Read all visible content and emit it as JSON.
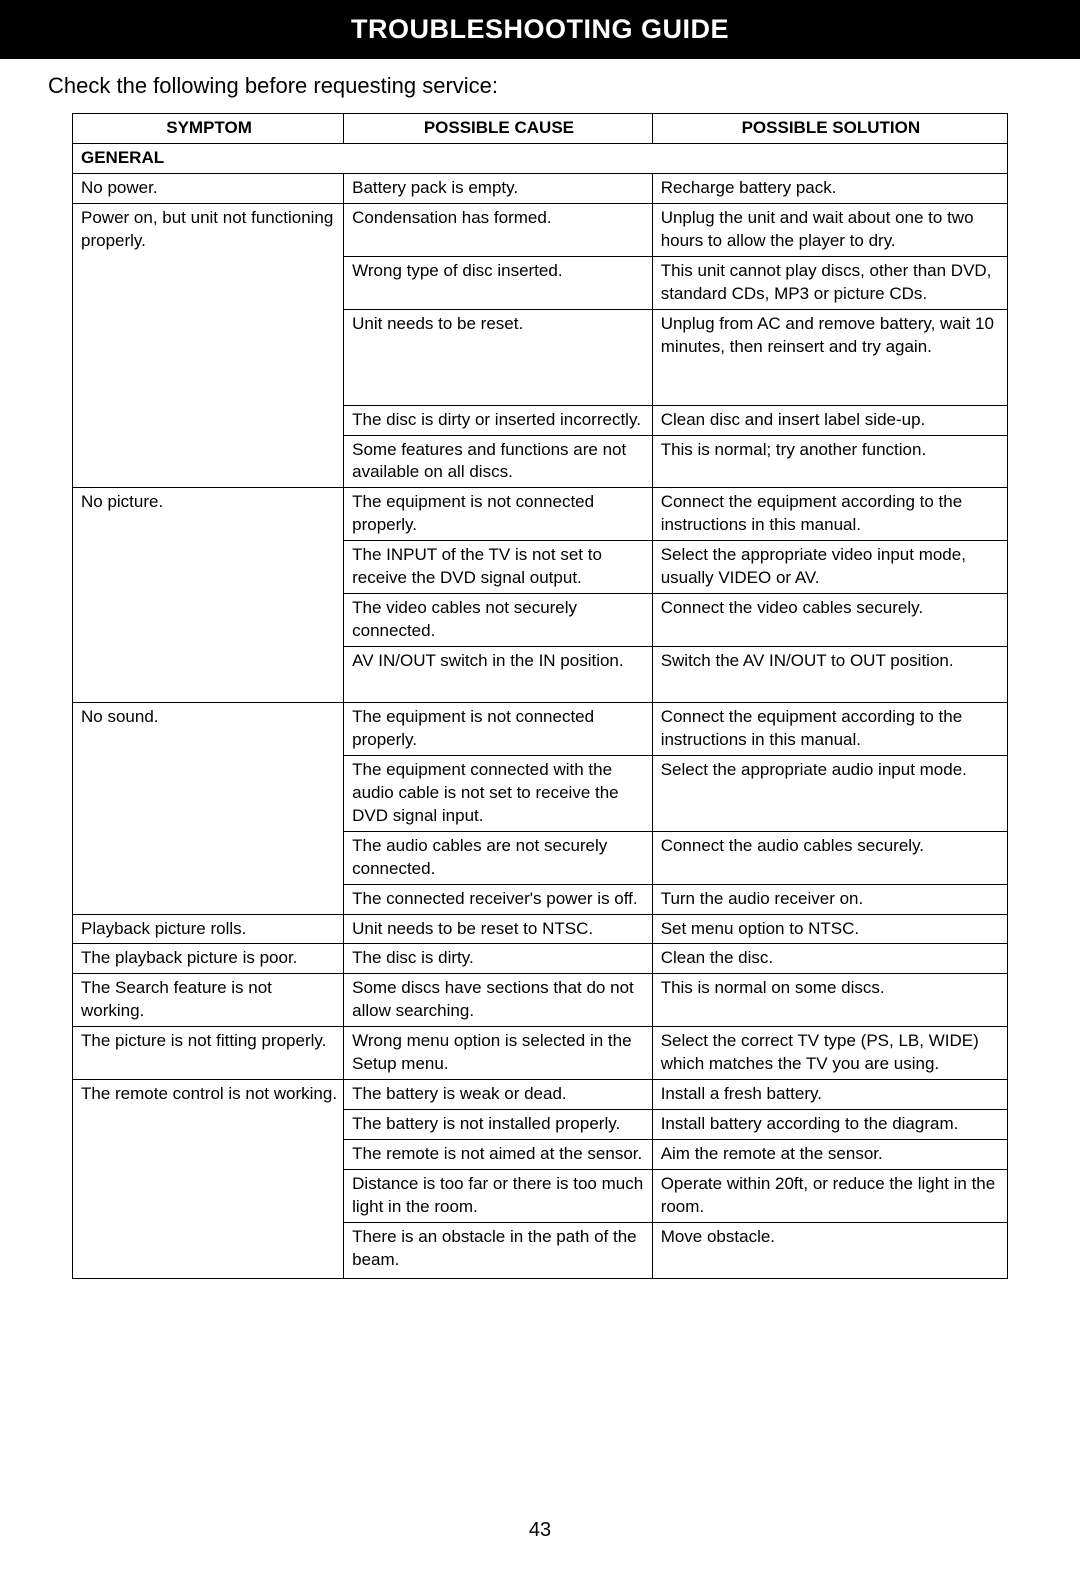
{
  "title": "TROUBLESHOOTING GUIDE",
  "subtitle": "Check the following before requesting service:",
  "page_number": "43",
  "headers": {
    "symptom": "SYMPTOM",
    "cause": "POSSIBLE CAUSE",
    "solution": "POSSIBLE SOLUTION"
  },
  "section_general": "GENERAL",
  "rows": {
    "r1": {
      "s": "No power.",
      "c": "Battery pack is empty.",
      "p": "Recharge battery pack."
    },
    "r2": {
      "s": "Power on, but unit not functioning properly.",
      "c": "Condensation has formed.",
      "p": "Unplug the unit and wait about one to two hours to allow the player to dry."
    },
    "r3": {
      "c": "Wrong type of disc inserted.",
      "p": "This unit cannot play discs, other than DVD, standard CDs, MP3 or picture CDs."
    },
    "r4": {
      "c": "Unit needs to be reset.",
      "p": "Unplug from AC and remove battery, wait 10 minutes, then reinsert and try again."
    },
    "r5": {
      "c": "The disc is dirty or inserted incorrectly.",
      "p": "Clean disc and insert label side-up."
    },
    "r6": {
      "c": "Some features and functions are not available on all discs.",
      "p": "This is normal; try another function."
    },
    "r7": {
      "s": "No picture.",
      "c": "The equipment is not connected properly.",
      "p": "Connect the equipment according to the instructions in this manual."
    },
    "r8": {
      "c": "The INPUT of the TV is not set to receive the DVD signal output.",
      "p": "Select the appropriate video input mode, usually VIDEO or AV."
    },
    "r9": {
      "c": "The video cables not securely connected.",
      "p": "Connect the video cables securely."
    },
    "r10": {
      "c": "AV IN/OUT switch in the IN position.",
      "p": "Switch the AV IN/OUT to OUT position."
    },
    "r11": {
      "s": "No sound.",
      "c": "The equipment is not connected properly.",
      "p": "Connect the equipment according to the instructions in this manual."
    },
    "r12": {
      "c": "The equipment connected with the audio cable is not set to receive the DVD signal input.",
      "p": "Select the appropriate audio input mode."
    },
    "r13": {
      "c": "The audio cables are not securely connected.",
      "p": "Connect the audio cables securely."
    },
    "r14": {
      "c": "The connected receiver's power is off.",
      "p": "Turn the audio receiver on."
    },
    "r15": {
      "s": "Playback picture rolls.",
      "c": "Unit needs to be reset to NTSC.",
      "p": "Set menu option to NTSC."
    },
    "r16": {
      "s": "The playback picture is poor.",
      "c": "The disc is dirty.",
      "p": "Clean the disc."
    },
    "r17": {
      "s": "The Search feature is not working.",
      "c": "Some discs have sections that do not allow searching.",
      "p": "This is normal on some discs."
    },
    "r18": {
      "s": "The picture is not fitting properly.",
      "c": "Wrong menu option is selected in the Setup menu.",
      "p": "Select the correct TV type (PS, LB, WIDE) which matches the TV you are using."
    },
    "r19": {
      "s": "The remote control is not working.",
      "c": "The battery is weak or dead.",
      "p": "Install a fresh battery."
    },
    "r20": {
      "c": "The battery is not installed properly.",
      "p": "Install battery according to the diagram."
    },
    "r21": {
      "c": "The remote is not aimed at the sensor.",
      "p": "Aim the remote at the sensor."
    },
    "r22": {
      "c": "Distance is too far or there is too much light in the room.",
      "p": "Operate within 20ft, or reduce the light in the room."
    },
    "r23": {
      "c": "There is an obstacle in the path of the beam.",
      "p": "Move obstacle."
    }
  }
}
